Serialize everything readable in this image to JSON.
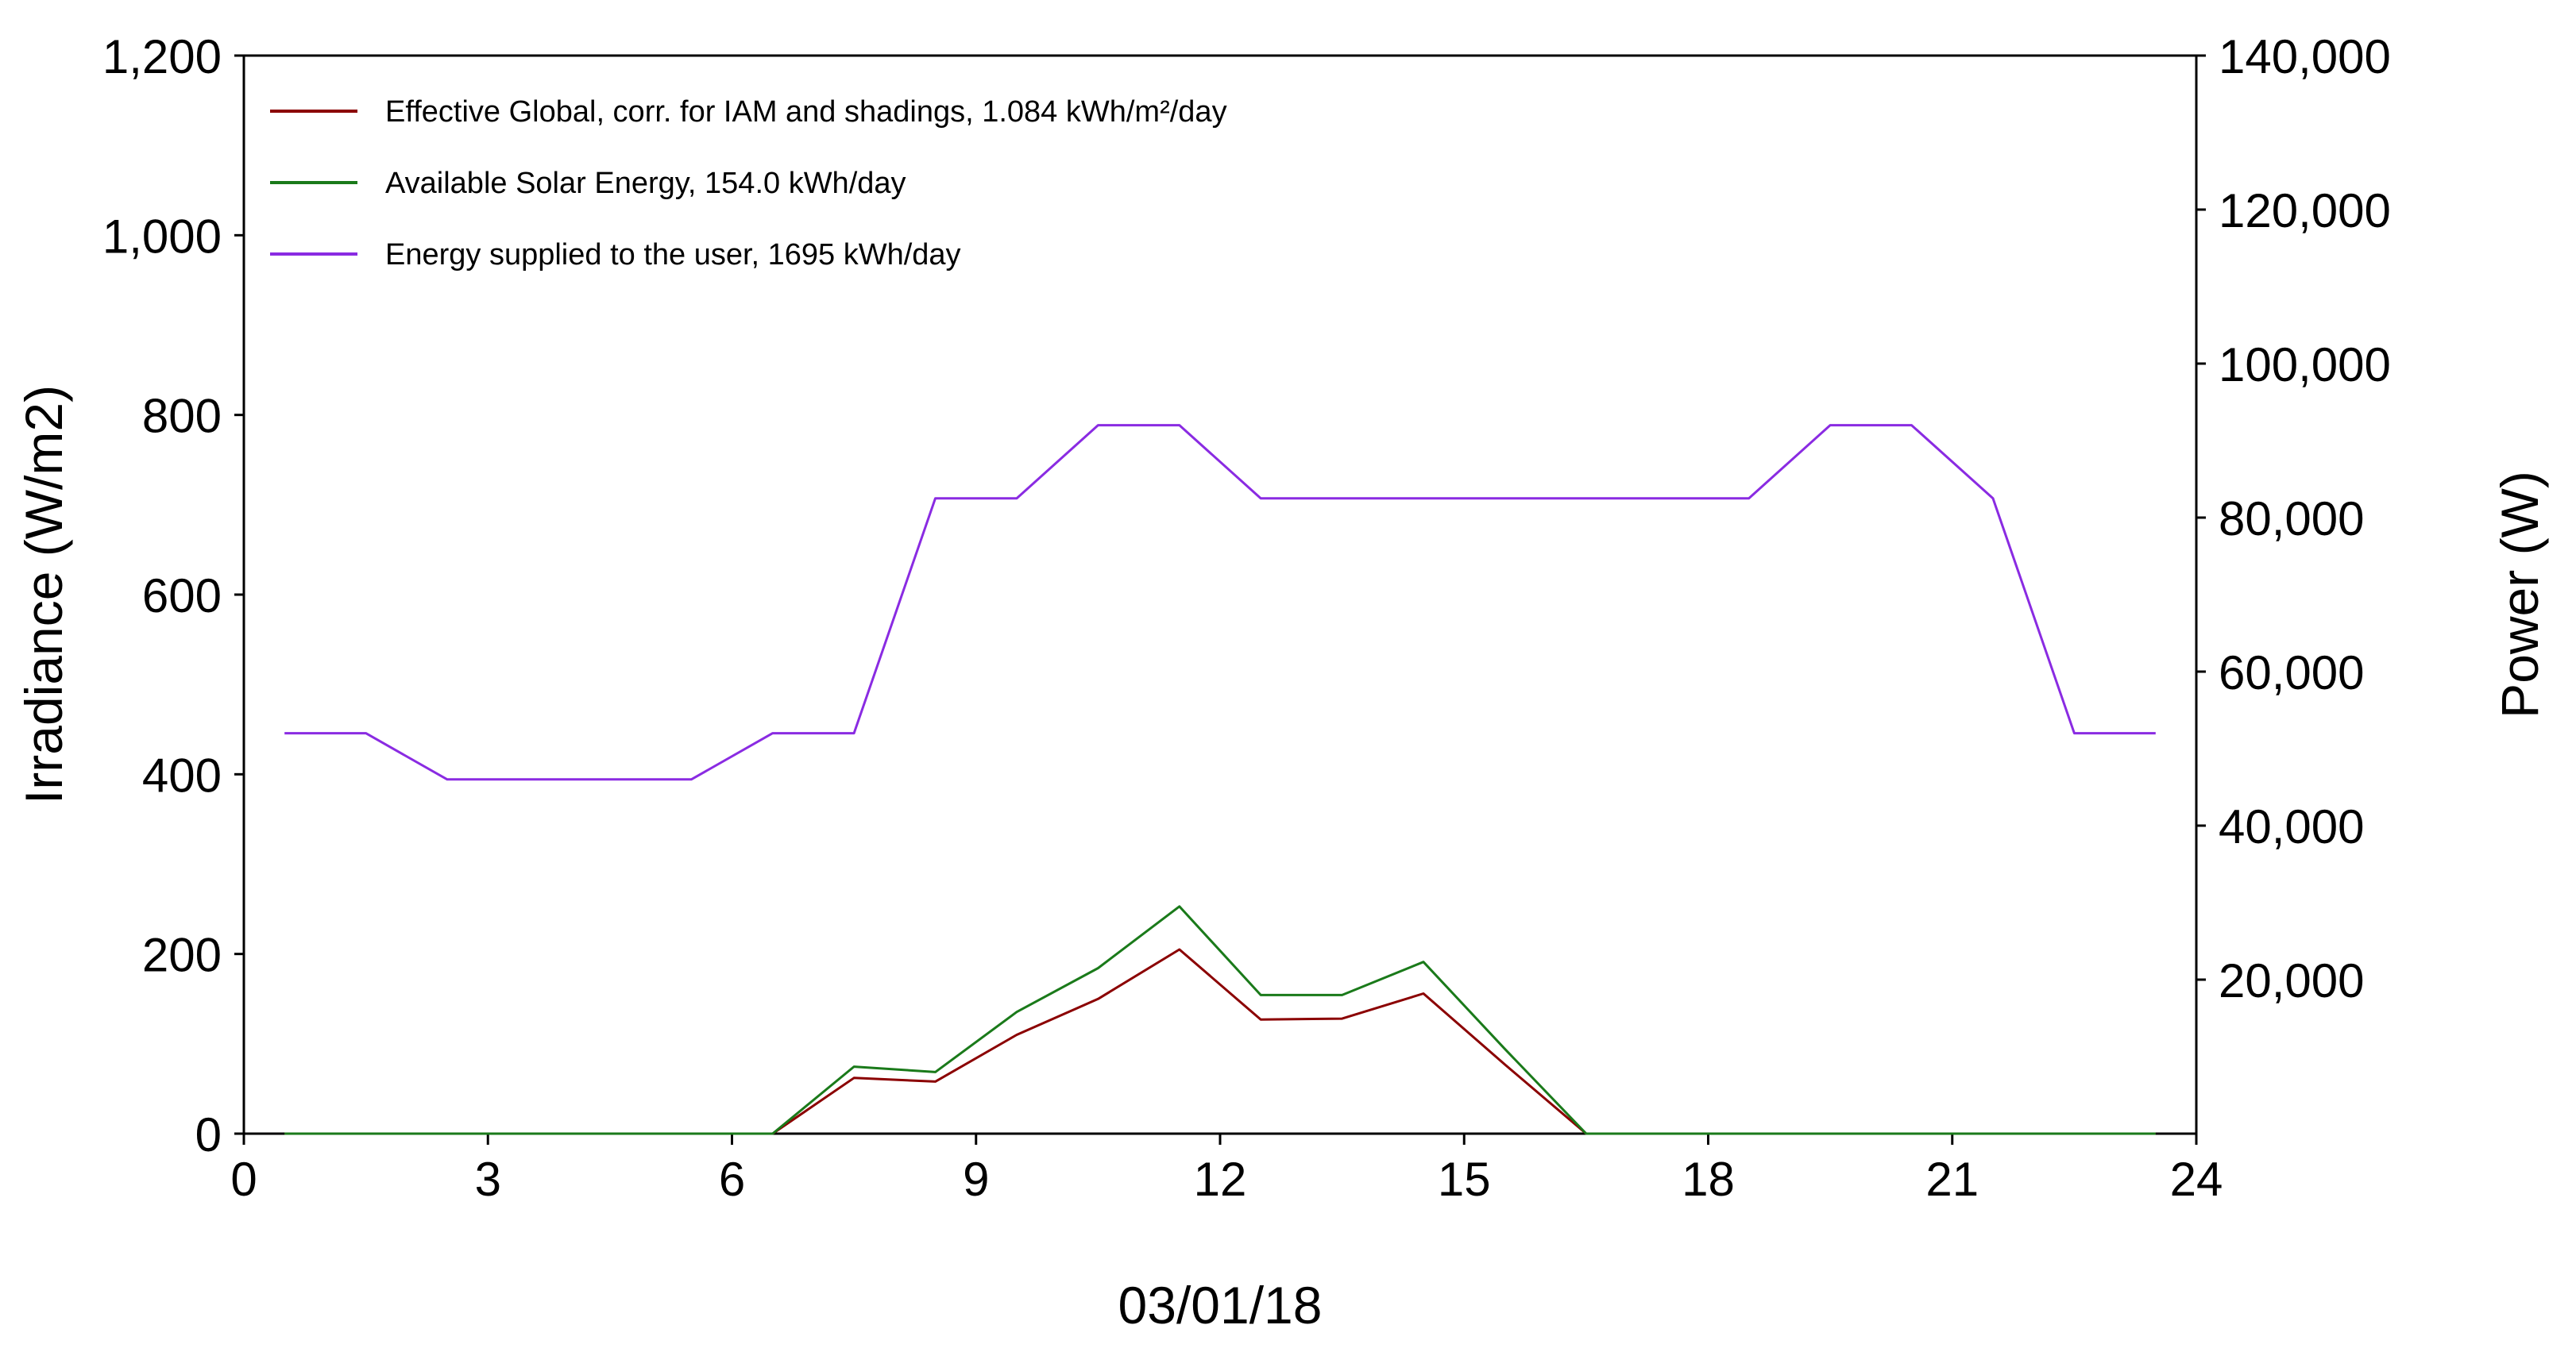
{
  "chart_data": {
    "type": "line",
    "title": "",
    "xlabel": "03/01/18",
    "ylabel_left": "Irradiance (W/m2)",
    "ylabel_right": "Power (W)",
    "xlim": [
      0,
      24
    ],
    "ylim_left": [
      0,
      1200
    ],
    "ylim_right": [
      0,
      140000
    ],
    "x_ticks": [
      "0",
      "3",
      "6",
      "9",
      "12",
      "15",
      "18",
      "21",
      "24"
    ],
    "y_left_ticks": [
      "0",
      "200",
      "400",
      "600",
      "800",
      "1,000",
      "1,200"
    ],
    "y_right_ticks": [
      "20,000",
      "40,000",
      "60,000",
      "80,000",
      "100,000",
      "120,000",
      "140,000"
    ],
    "grid": false,
    "legend_position": "top-left",
    "series": [
      {
        "name": "Effective Global, corr. for IAM and shadings,  1.084 kWh/m²/day",
        "axis": "left",
        "color": "#8b0000",
        "x": [
          0.5,
          1.5,
          2.5,
          3.5,
          4.5,
          5.5,
          6.5,
          7.5,
          8.5,
          9.5,
          10.5,
          11.5,
          12.5,
          13.5,
          14.5,
          15.5,
          16.5,
          17.5,
          18.5,
          19.5,
          20.5,
          21.5,
          22.5,
          23.5
        ],
        "values": [
          0,
          0,
          0,
          0,
          0,
          0,
          0,
          62,
          58,
          110,
          150,
          205,
          127,
          128,
          156,
          77,
          0,
          0,
          0,
          0,
          0,
          0,
          0,
          0
        ]
      },
      {
        "name": "Available Solar Energy,  154.0 kWh/day",
        "axis": "right",
        "color": "#1a7a1a",
        "x": [
          0.5,
          1.5,
          2.5,
          3.5,
          4.5,
          5.5,
          6.5,
          7.5,
          8.5,
          9.5,
          10.5,
          11.5,
          12.5,
          13.5,
          14.5,
          15.5,
          16.5,
          17.5,
          18.5,
          19.5,
          20.5,
          21.5,
          22.5,
          23.5
        ],
        "values": [
          0,
          0,
          0,
          0,
          0,
          0,
          0,
          8700,
          8000,
          15800,
          21500,
          29500,
          18000,
          18000,
          22300,
          11000,
          0,
          0,
          0,
          0,
          0,
          0,
          0,
          0
        ]
      },
      {
        "name": "Energy supplied to the user,  1695 kWh/day",
        "axis": "right",
        "color": "#8a2be2",
        "x": [
          0.5,
          1.5,
          2.5,
          3.5,
          4.5,
          5.5,
          6.5,
          7.5,
          8.5,
          9.5,
          10.5,
          11.5,
          12.5,
          13.5,
          14.5,
          15.5,
          16.5,
          17.5,
          18.5,
          19.5,
          20.5,
          21.5,
          22.5,
          23.5
        ],
        "values": [
          52000,
          52000,
          46000,
          46000,
          46000,
          46000,
          52000,
          52000,
          82500,
          82500,
          92000,
          92000,
          82500,
          82500,
          82500,
          82500,
          82500,
          82500,
          82500,
          92000,
          92000,
          82500,
          52000,
          52000
        ]
      }
    ]
  }
}
